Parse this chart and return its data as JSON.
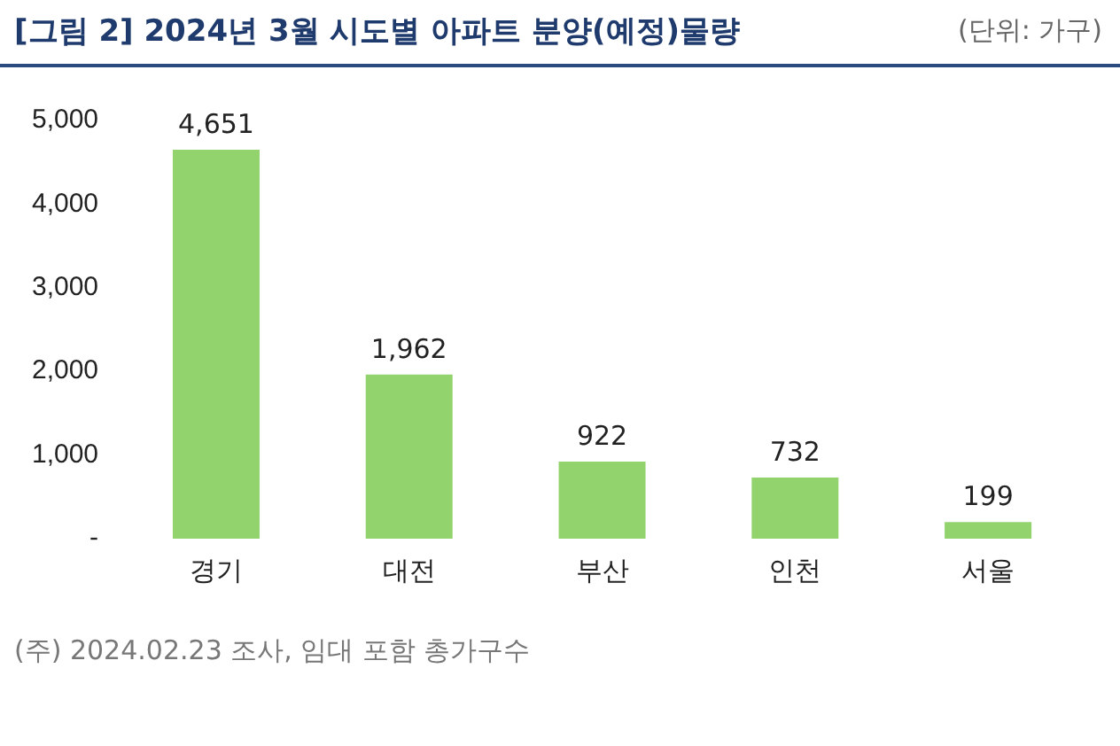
{
  "chart_data": {
    "type": "bar",
    "title": "[그림 2] 2024년 3월 시도별 아파트 분양(예정)물량",
    "subtitle": "(단위: 가구)",
    "categories": [
      "경기",
      "대전",
      "부산",
      "인천",
      "서울"
    ],
    "values": [
      4651,
      1962,
      922,
      732,
      199
    ],
    "color": "#92d36e",
    "value_labels": [
      "4,651",
      "1,962",
      "922",
      "732",
      "199"
    ],
    "ylim": [
      0,
      5000
    ],
    "yticks": [
      {
        "value": 0,
        "label": "-"
      },
      {
        "value": 1000,
        "label": "1,000"
      },
      {
        "value": 2000,
        "label": "2,000"
      },
      {
        "value": 3000,
        "label": "3,000"
      },
      {
        "value": 4000,
        "label": "4,000"
      },
      {
        "value": 5000,
        "label": "5,000"
      }
    ],
    "grid": false,
    "legend": false,
    "annotations": [
      "(주) 2024.02.23 조사, 임대 포함 총가구수"
    ]
  }
}
